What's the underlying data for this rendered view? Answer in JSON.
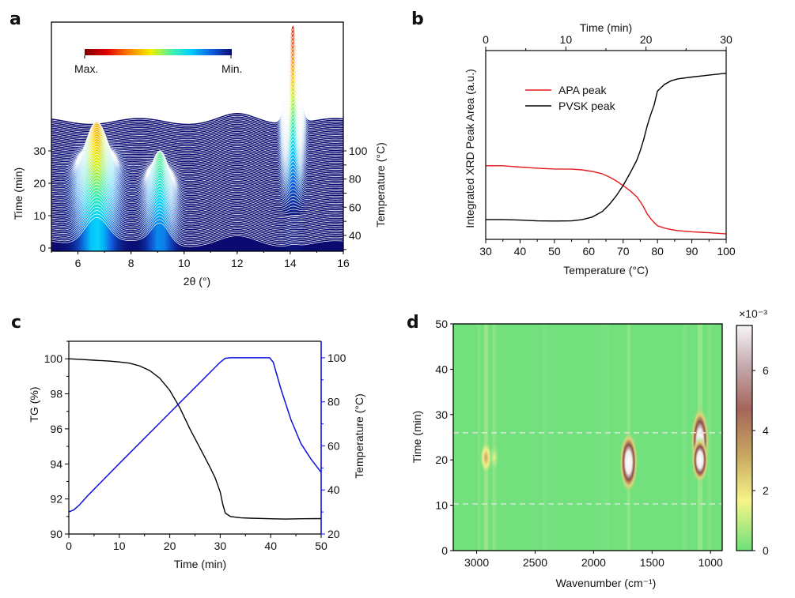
{
  "panels": {
    "a": {
      "label": "a"
    },
    "b": {
      "label": "b"
    },
    "c": {
      "label": "c"
    },
    "d": {
      "label": "d"
    }
  },
  "chart_data": [
    {
      "id": "a",
      "type": "area",
      "title": "",
      "description": "Waterfall stack of in-situ XRD patterns vs time/temperature",
      "xlabel": "2θ (°)",
      "ylabel_left": "Time (min)",
      "ylabel_right": "Temperature (°C)",
      "xlim": [
        5,
        16
      ],
      "xticks": [
        6,
        8,
        10,
        12,
        14,
        16
      ],
      "ylim_left": [
        0,
        38
      ],
      "yticks_left": [
        0,
        10,
        20,
        30
      ],
      "yticks_right": [
        40,
        60,
        80,
        100
      ],
      "colorbar": {
        "min_label": "Min.",
        "max_label": "Max.",
        "colormap": "jet-reversed"
      },
      "peaks": [
        {
          "position_2theta": 6.7,
          "phase": "APA",
          "max_time_min": 18,
          "relative_intensity": 0.65
        },
        {
          "position_2theta": 9.1,
          "phase": "APA",
          "max_time_min": 14,
          "relative_intensity": 0.45
        },
        {
          "position_2theta": 14.1,
          "phase": "PVSK",
          "max_time_min": 38,
          "relative_intensity": 1.0
        }
      ],
      "num_traces": 70,
      "time_range_min": [
        0,
        38
      ]
    },
    {
      "id": "b",
      "type": "line",
      "title": "",
      "xlabel": "Temperature (°C)",
      "xlabel_top": "Time (min)",
      "ylabel": "Integrated XRD Peak Area (a.u.)",
      "xlim": [
        30,
        100
      ],
      "xticks": [
        30,
        40,
        50,
        60,
        70,
        80,
        90,
        100
      ],
      "xlim_top": [
        0,
        30
      ],
      "xticks_top": [
        0,
        10,
        20,
        30
      ],
      "ylim": [
        0,
        1
      ],
      "legend": "upper-left",
      "x": [
        30,
        35,
        40,
        45,
        50,
        55,
        58,
        61,
        64,
        66,
        68,
        70,
        72,
        74,
        75,
        76,
        77,
        78,
        79,
        80,
        82,
        84,
        86,
        90,
        95,
        100
      ],
      "series": [
        {
          "name": "APA peak",
          "color": "#e41a1c",
          "values": [
            0.39,
            0.39,
            0.383,
            0.377,
            0.373,
            0.372,
            0.368,
            0.36,
            0.347,
            0.33,
            0.31,
            0.285,
            0.258,
            0.225,
            0.2,
            0.17,
            0.135,
            0.11,
            0.09,
            0.072,
            0.06,
            0.052,
            0.046,
            0.04,
            0.035,
            0.029
          ]
        },
        {
          "name": "PVSK peak",
          "color": "#000000",
          "values": [
            0.105,
            0.105,
            0.102,
            0.098,
            0.097,
            0.098,
            0.104,
            0.118,
            0.148,
            0.185,
            0.23,
            0.285,
            0.35,
            0.42,
            0.47,
            0.53,
            0.6,
            0.66,
            0.71,
            0.785,
            0.82,
            0.84,
            0.85,
            0.86,
            0.87,
            0.88
          ]
        }
      ]
    },
    {
      "id": "c",
      "type": "line",
      "title": "",
      "xlabel": "Time (min)",
      "ylabel": "TG (%)",
      "ylabel_right": "Temperature (°C)",
      "xlim": [
        0,
        50
      ],
      "xticks": [
        0,
        10,
        20,
        30,
        40,
        50
      ],
      "ylim": [
        90,
        101
      ],
      "yticks": [
        90,
        92,
        94,
        96,
        98,
        100
      ],
      "ylim_right": [
        20,
        107.5
      ],
      "yticks_right": [
        20,
        40,
        60,
        80,
        100
      ],
      "x": [
        0,
        2,
        5,
        8,
        10,
        12,
        14,
        16,
        18,
        20,
        22,
        24,
        26,
        28,
        29,
        30,
        30.5,
        31,
        32,
        34,
        36,
        40,
        43,
        46,
        50
      ],
      "series": [
        {
          "name": "TG",
          "axis": "left",
          "color": "#000000",
          "values": [
            100,
            99.97,
            99.92,
            99.87,
            99.82,
            99.75,
            99.6,
            99.33,
            98.9,
            98.2,
            97.2,
            96.0,
            94.9,
            93.8,
            93.2,
            92.4,
            91.7,
            91.2,
            91.0,
            90.93,
            90.9,
            90.87,
            90.85,
            90.87,
            90.88
          ]
        },
        {
          "name": "Temperature",
          "axis": "right",
          "color": "#1010e0",
          "x": [
            0,
            1,
            2,
            4,
            10,
            20,
            30,
            31,
            32,
            35,
            39.8,
            40.5,
            42,
            44,
            46,
            48,
            50
          ],
          "values": [
            30,
            31,
            33,
            38,
            52,
            75,
            98,
            99.8,
            100,
            100,
            100,
            98,
            86,
            72,
            61,
            54,
            48
          ]
        }
      ]
    },
    {
      "id": "d",
      "type": "heatmap",
      "title": "",
      "xlabel": "Wavenumber (cm⁻¹)",
      "ylabel": "Time (min)",
      "xlim": [
        3200,
        900
      ],
      "xticks": [
        3000,
        2500,
        2000,
        1500,
        1000
      ],
      "ylim": [
        0,
        50
      ],
      "yticks": [
        0,
        10,
        20,
        30,
        40,
        50
      ],
      "colorbar": {
        "label": "×10⁻³",
        "range": [
          0,
          7.5
        ],
        "ticks": [
          0,
          2,
          4,
          6
        ]
      },
      "reference_lines_time_min": [
        10.3,
        26
      ],
      "hotspots": [
        {
          "wavenumber": 2920,
          "time_min": 20.5,
          "intensity": 2.5
        },
        {
          "wavenumber": 2850,
          "time_min": 20.5,
          "intensity": 1.6
        },
        {
          "wavenumber": 1700,
          "time_min": 19.5,
          "intensity": 7.5
        },
        {
          "wavenumber": 1090,
          "time_min": 24,
          "intensity": 7.0
        },
        {
          "wavenumber": 1090,
          "time_min": 20,
          "intensity": 5.0
        }
      ]
    }
  ]
}
